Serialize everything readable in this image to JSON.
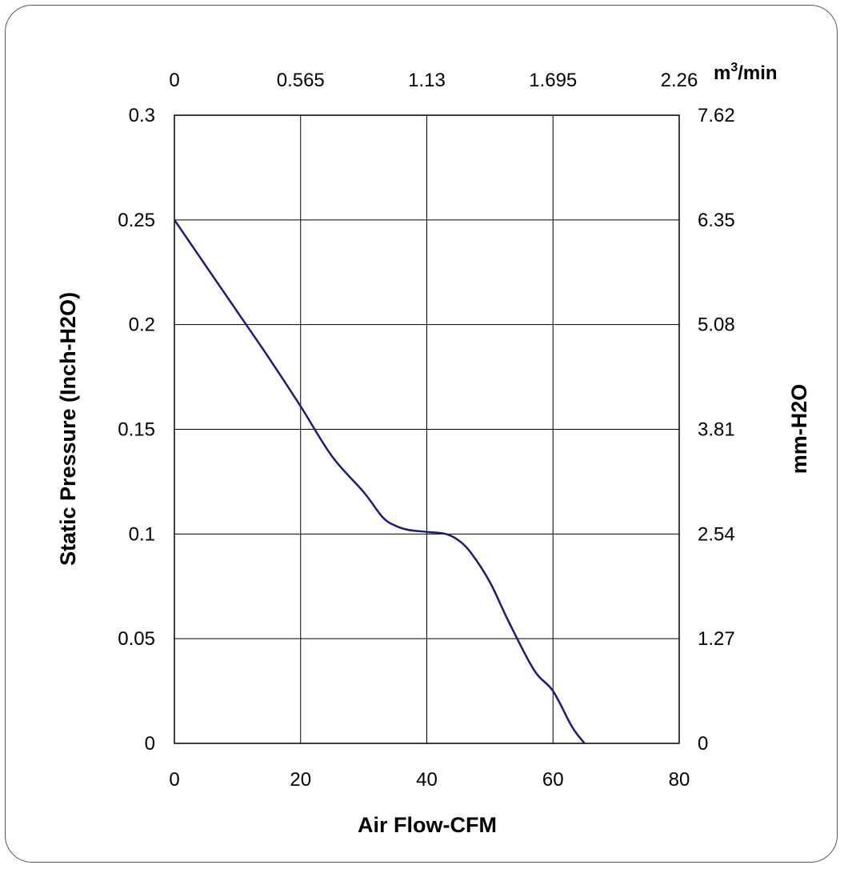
{
  "chart_data": {
    "type": "line",
    "title": "",
    "xlabel": "Air Flow-CFM",
    "ylabel": "Static Pressure (Inch-H2O)",
    "y2label": "mm-H2O",
    "x2label_base": "m",
    "x2label_sup": "3",
    "x2label_tail": "/min",
    "xlim": [
      0,
      80
    ],
    "ylim": [
      0,
      0.3
    ],
    "grid": true,
    "x_ticks": [
      "0",
      "20",
      "40",
      "60",
      "80"
    ],
    "y_ticks": [
      "0",
      "0.05",
      "0.1",
      "0.15",
      "0.2",
      "0.25",
      "0.3"
    ],
    "x2_ticks": [
      "0",
      "0.565",
      "1.13",
      "1.695",
      "2.26"
    ],
    "y2_ticks": [
      "0",
      "1.27",
      "2.54",
      "3.81",
      "5.08",
      "6.35",
      "7.62"
    ],
    "line_color": "#1a1a80",
    "series": [
      {
        "x": [
          0,
          5,
          10,
          15,
          20,
          25,
          30,
          33,
          35,
          37,
          40,
          43,
          45,
          47,
          50,
          53,
          57,
          60,
          63,
          65
        ],
        "y": [
          0.25,
          0.228,
          0.206,
          0.184,
          0.161,
          0.137,
          0.12,
          0.108,
          0.104,
          0.102,
          0.101,
          0.1,
          0.097,
          0.091,
          0.077,
          0.058,
          0.035,
          0.025,
          0.008,
          0
        ]
      }
    ]
  }
}
